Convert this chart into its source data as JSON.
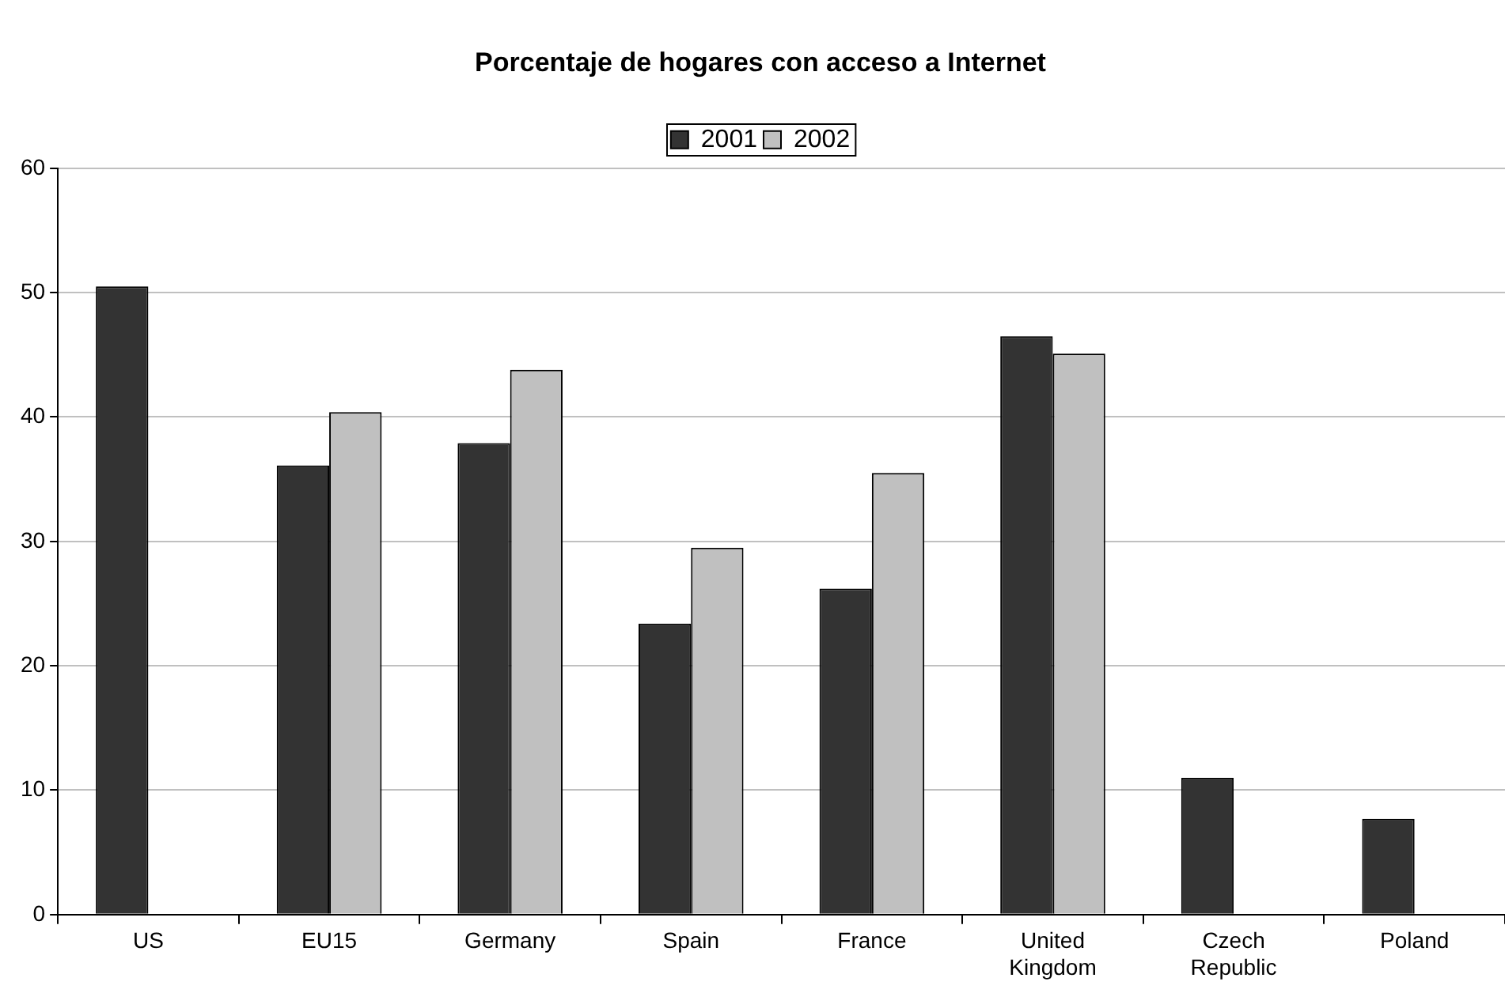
{
  "chart_data": {
    "type": "bar",
    "title": "Porcentaje de hogares con acceso a Internet",
    "categories": [
      "US",
      "EU15",
      "Germany",
      "Spain",
      "France",
      "United Kingdom",
      "Czech Republic",
      "Poland"
    ],
    "series": [
      {
        "name": "2001",
        "color": "#333333",
        "values": [
          50.5,
          36.1,
          37.9,
          23.4,
          26.2,
          46.5,
          11.0,
          7.7
        ]
      },
      {
        "name": "2002",
        "color": "#c0c0c0",
        "values": [
          null,
          40.4,
          43.8,
          29.5,
          35.5,
          45.1,
          null,
          null
        ]
      }
    ],
    "ylim": [
      0,
      60
    ],
    "yticks": [
      0,
      10,
      20,
      30,
      40,
      50,
      60
    ],
    "grid": "y",
    "legend": "top"
  }
}
